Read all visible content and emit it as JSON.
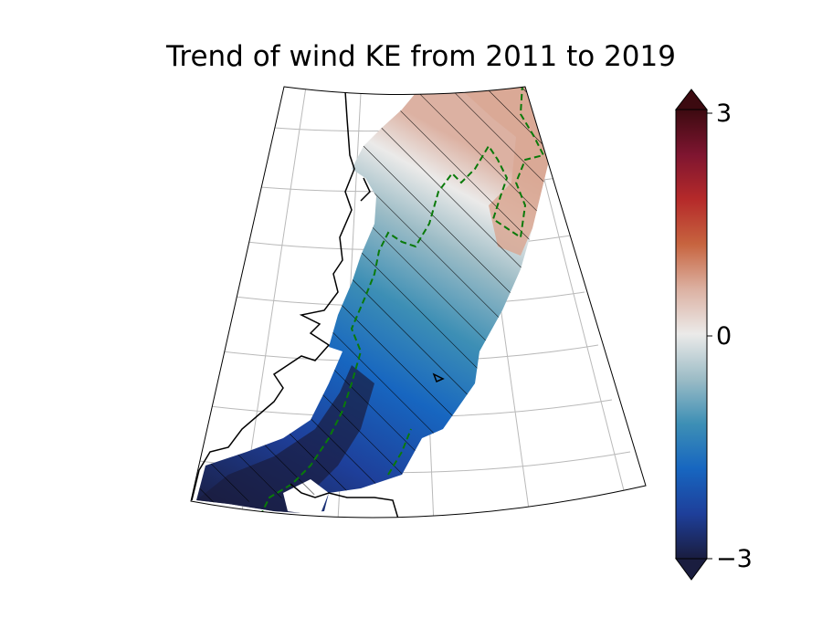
{
  "title": "Trend of wind KE from 2011 to 2019",
  "colorbar": {
    "ticks": [
      {
        "value": 3,
        "label": "3"
      },
      {
        "value": 0,
        "label": "0"
      },
      {
        "value": -3,
        "label": "−3"
      }
    ],
    "range": [
      -3,
      3
    ],
    "extend": "both",
    "colormap": [
      "#1a1d3f",
      "#1e3f9a",
      "#1766c0",
      "#3d8fb5",
      "#9cbcc6",
      "#ebeae9",
      "#dcb1a2",
      "#c7643f",
      "#b52a2a",
      "#7e1530",
      "#3c0a10"
    ]
  },
  "map": {
    "projection": "conic",
    "gridlines": true,
    "hatching": "significance",
    "contour_color": "#0a7a0a",
    "coastline_color": "#000000"
  }
}
